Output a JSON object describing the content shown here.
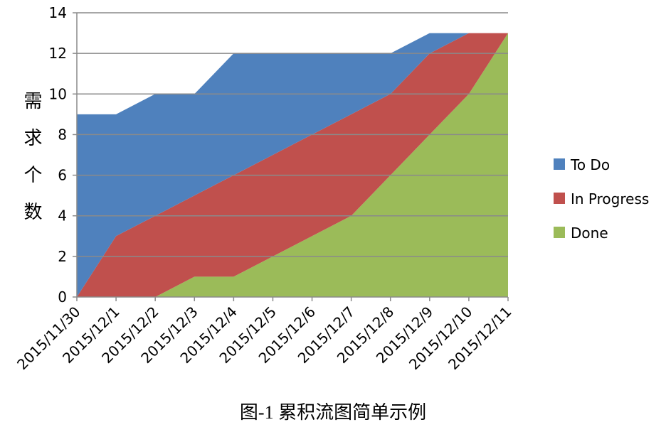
{
  "chart_data": {
    "type": "stacked_area",
    "y_label": "需求个数",
    "caption": "图-1 累积流图简单示例",
    "categories": [
      "2015/11/30",
      "2015/12/1",
      "2015/12/2",
      "2015/12/3",
      "2015/12/4",
      "2015/12/5",
      "2015/12/6",
      "2015/12/7",
      "2015/12/8",
      "2015/12/9",
      "2015/12/10",
      "2015/12/11"
    ],
    "series": [
      {
        "name": "Done",
        "color": "#9bbb59",
        "values": [
          0,
          0,
          0,
          1,
          1,
          2,
          3,
          4,
          6,
          8,
          10,
          13
        ]
      },
      {
        "name": "In Progress",
        "color": "#c0504d",
        "values": [
          0,
          3,
          4,
          4,
          5,
          5,
          5,
          5,
          4,
          4,
          3,
          0
        ]
      },
      {
        "name": "To Do",
        "color": "#4f81bd",
        "values": [
          9,
          6,
          6,
          5,
          6,
          5,
          4,
          3,
          2,
          1,
          0,
          0
        ]
      }
    ],
    "ylim": [
      0,
      14
    ],
    "yticks": [
      0,
      2,
      4,
      6,
      8,
      10,
      12,
      14
    ],
    "grid": true,
    "legend": "right"
  }
}
